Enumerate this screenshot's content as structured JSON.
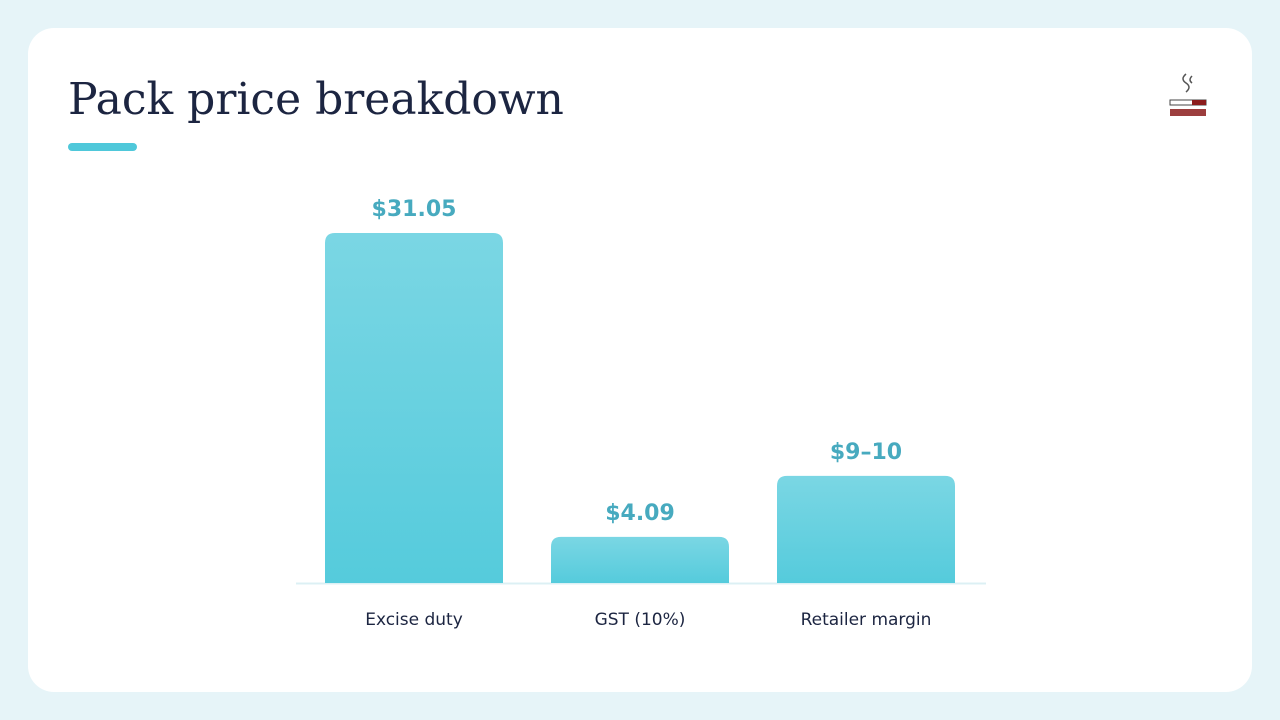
{
  "chart_data": {
    "type": "bar",
    "title": "Pack price breakdown",
    "categories": [
      "Excise duty",
      "GST (10%)",
      "Retailer margin"
    ],
    "values": [
      31.05,
      4.09,
      9.5
    ],
    "value_labels": [
      "$31.05",
      "$4.09",
      "$9–10"
    ],
    "color": "#55cbdc"
  }
}
